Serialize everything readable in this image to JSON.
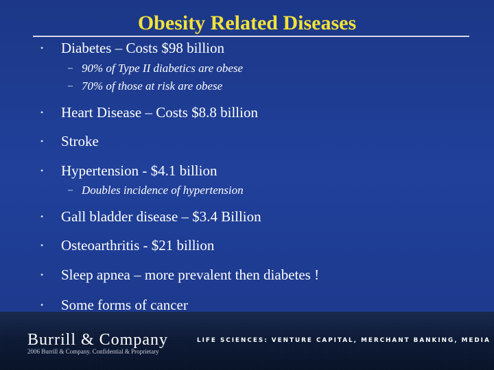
{
  "slide": {
    "title": "Obesity Related Diseases",
    "bullets": [
      {
        "text": "Diabetes – Costs $98 billion",
        "subitems": [
          "90% of Type II diabetics are obese",
          "70% of those at risk are obese"
        ]
      },
      {
        "text": "Heart Disease – Costs $8.8 billion",
        "subitems": []
      },
      {
        "text": "Stroke",
        "subitems": []
      },
      {
        "text": "Hypertension - $4.1 billion",
        "subitems": [
          "Doubles incidence of hypertension"
        ]
      },
      {
        "text": "Gall bladder disease – $3.4 Billion",
        "subitems": []
      },
      {
        "text": "Osteoarthritis - $21 billion",
        "subitems": []
      },
      {
        "text": "Sleep apnea – more prevalent then diabetes !",
        "subitems": []
      },
      {
        "text": "Some forms of cancer",
        "subitems": []
      }
    ],
    "bullet_glyph": "•",
    "sub_glyph": "–"
  },
  "footer": {
    "company_name_part1": "Burrill",
    "company_ampersand": "&",
    "company_name_part2": "Company",
    "tagline": "LIFE SCIENCES: VENTURE CAPITAL, MERCHANT BANKING, MEDIA",
    "copyright": "2006 Burrill & Company. Confidential & Proprietary"
  },
  "colors": {
    "background": "#1e3a8c",
    "title": "#f2e23a",
    "text": "#ffffff",
    "footer": "#0a1830"
  }
}
